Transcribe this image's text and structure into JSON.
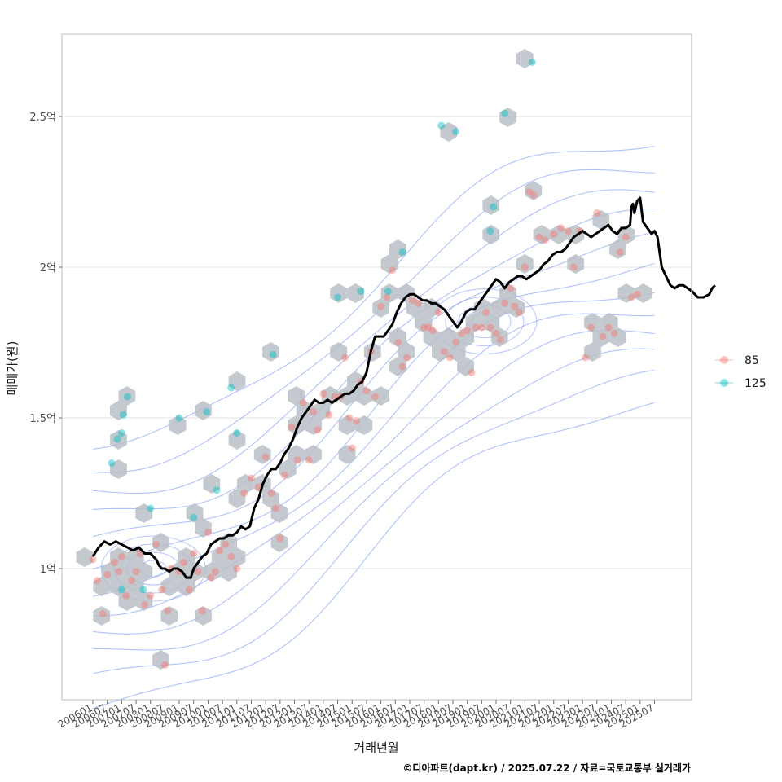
{
  "chart_data": {
    "type": "scatter",
    "xlabel": "거래년월",
    "ylabel": "매매가(원)",
    "caption": "©디아파트(dapt.kr) / 2025.07.22 / 자료=국토교통부 실거래가",
    "ylim": [
      0.6,
      2.78
    ],
    "y_ticks": [
      {
        "value": 1.0,
        "label": "1억"
      },
      {
        "value": 1.5,
        "label": "1.5억"
      },
      {
        "value": 2.0,
        "label": "2억"
      },
      {
        "value": 2.5,
        "label": "2.5억"
      }
    ],
    "x_ticks": [
      "200601",
      "200607",
      "200701",
      "200707",
      "200801",
      "200807",
      "200901",
      "200907",
      "201001",
      "201007",
      "201101",
      "201107",
      "201201",
      "201207",
      "201301",
      "201307",
      "201401",
      "201407",
      "201501",
      "201507",
      "201601",
      "201607",
      "201701",
      "201707",
      "201801",
      "201807",
      "201901",
      "201907",
      "202001",
      "202007",
      "202101",
      "202107",
      "202201",
      "202207",
      "202301",
      "202307",
      "202401",
      "202407",
      "202501",
      "202507"
    ],
    "grid": true,
    "legend_position": "right",
    "colors": {
      "85": "#f8766d",
      "125": "#00bfc4",
      "trend": "#000000",
      "density": "#6f8ff0",
      "hex": "#b9bfc7",
      "hex_light": "#c9d6e6"
    },
    "series": [
      {
        "name": "85",
        "color": "#f8766d",
        "points": [
          [
            0.0,
            1.03
          ],
          [
            0.3,
            0.96
          ],
          [
            0.7,
            0.85
          ],
          [
            1.0,
            0.98
          ],
          [
            1.5,
            1.02
          ],
          [
            1.8,
            0.99
          ],
          [
            2.0,
            1.04
          ],
          [
            2.3,
            0.91
          ],
          [
            2.7,
            0.96
          ],
          [
            3.0,
            0.99
          ],
          [
            3.3,
            1.05
          ],
          [
            3.6,
            0.88
          ],
          [
            4.0,
            0.91
          ],
          [
            4.4,
            1.08
          ],
          [
            4.8,
            0.93
          ],
          [
            5.2,
            0.86
          ],
          [
            5.4,
            1.0
          ],
          [
            5.0,
            0.68
          ],
          [
            6.0,
            0.99
          ],
          [
            6.3,
            1.02
          ],
          [
            6.7,
            0.93
          ],
          [
            7.0,
            1.05
          ],
          [
            7.3,
            0.99
          ],
          [
            7.6,
            0.86
          ],
          [
            8.0,
            1.12
          ],
          [
            8.2,
            0.97
          ],
          [
            8.5,
            0.99
          ],
          [
            8.8,
            1.06
          ],
          [
            9.2,
            1.08
          ],
          [
            9.6,
            1.04
          ],
          [
            10.0,
            1.0
          ],
          [
            10.5,
            1.25
          ],
          [
            11.0,
            1.3
          ],
          [
            11.5,
            1.27
          ],
          [
            12.0,
            1.37
          ],
          [
            12.4,
            1.25
          ],
          [
            12.7,
            1.2
          ],
          [
            13.0,
            1.1
          ],
          [
            13.3,
            1.31
          ],
          [
            13.8,
            1.47
          ],
          [
            14.2,
            1.36
          ],
          [
            14.6,
            1.55
          ],
          [
            15.0,
            1.36
          ],
          [
            15.3,
            1.52
          ],
          [
            15.6,
            1.46
          ],
          [
            16.0,
            1.58
          ],
          [
            16.4,
            1.51
          ],
          [
            16.8,
            1.57
          ],
          [
            17.2,
            1.57
          ],
          [
            17.5,
            1.7
          ],
          [
            17.8,
            1.5
          ],
          [
            18.0,
            1.4
          ],
          [
            18.3,
            1.49
          ],
          [
            18.6,
            1.62
          ],
          [
            19.0,
            1.59
          ],
          [
            19.3,
            1.72
          ],
          [
            19.6,
            1.57
          ],
          [
            20.0,
            1.87
          ],
          [
            20.4,
            1.9
          ],
          [
            20.8,
            1.99
          ],
          [
            21.2,
            1.75
          ],
          [
            21.5,
            1.67
          ],
          [
            21.8,
            1.7
          ],
          [
            22.2,
            1.89
          ],
          [
            22.6,
            1.88
          ],
          [
            23.0,
            1.8
          ],
          [
            23.3,
            1.8
          ],
          [
            23.6,
            1.79
          ],
          [
            24.0,
            1.85
          ],
          [
            24.4,
            1.72
          ],
          [
            24.8,
            1.7
          ],
          [
            25.2,
            1.75
          ],
          [
            25.6,
            1.78
          ],
          [
            26.0,
            1.79
          ],
          [
            26.3,
            1.65
          ],
          [
            26.6,
            1.8
          ],
          [
            27.0,
            1.8
          ],
          [
            27.3,
            1.85
          ],
          [
            27.6,
            1.8
          ],
          [
            28.0,
            1.78
          ],
          [
            28.3,
            1.76
          ],
          [
            28.6,
            1.88
          ],
          [
            29.0,
            1.93
          ],
          [
            29.3,
            1.87
          ],
          [
            29.6,
            1.85
          ],
          [
            30.0,
            2.0
          ],
          [
            30.3,
            2.25
          ],
          [
            30.6,
            2.24
          ],
          [
            31.0,
            2.1
          ],
          [
            31.4,
            2.09
          ],
          [
            32.0,
            2.11
          ],
          [
            32.5,
            2.13
          ],
          [
            33.0,
            2.12
          ],
          [
            33.4,
            2.0
          ],
          [
            33.8,
            2.12
          ],
          [
            34.2,
            1.7
          ],
          [
            34.6,
            1.8
          ],
          [
            35.0,
            2.18
          ],
          [
            35.4,
            1.77
          ],
          [
            35.8,
            1.8
          ],
          [
            36.2,
            1.78
          ],
          [
            36.6,
            2.05
          ],
          [
            37.0,
            2.1
          ],
          [
            37.4,
            1.9
          ],
          [
            37.8,
            1.91
          ]
        ]
      },
      {
        "name": "125",
        "color": "#00bfc4",
        "points": [
          [
            1.3,
            1.35
          ],
          [
            1.7,
            1.43
          ],
          [
            2.0,
            1.45
          ],
          [
            2.1,
            1.51
          ],
          [
            2.4,
            1.57
          ],
          [
            2.0,
            0.93
          ],
          [
            3.5,
            0.93
          ],
          [
            4.0,
            1.2
          ],
          [
            6.0,
            1.5
          ],
          [
            7.0,
            1.17
          ],
          [
            7.9,
            1.52
          ],
          [
            8.6,
            1.26
          ],
          [
            9.6,
            1.6
          ],
          [
            10.0,
            1.45
          ],
          [
            12.5,
            1.71
          ],
          [
            17.0,
            1.9
          ],
          [
            18.6,
            1.92
          ],
          [
            20.5,
            1.92
          ],
          [
            21.5,
            2.05
          ],
          [
            24.2,
            2.47
          ],
          [
            25.2,
            2.45
          ],
          [
            27.6,
            2.12
          ],
          [
            27.8,
            2.2
          ],
          [
            28.6,
            2.51
          ],
          [
            30.5,
            2.68
          ]
        ]
      }
    ],
    "trend": {
      "name": "median",
      "color": "#000000",
      "points": [
        [
          0,
          1.04
        ],
        [
          0.4,
          1.07
        ],
        [
          0.8,
          1.09
        ],
        [
          1.2,
          1.08
        ],
        [
          1.6,
          1.09
        ],
        [
          2.0,
          1.08
        ],
        [
          2.4,
          1.07
        ],
        [
          2.8,
          1.06
        ],
        [
          3.2,
          1.07
        ],
        [
          3.6,
          1.05
        ],
        [
          4.0,
          1.05
        ],
        [
          4.4,
          1.03
        ],
        [
          4.6,
          1.01
        ],
        [
          4.8,
          1.0
        ],
        [
          5.0,
          1.0
        ],
        [
          5.3,
          0.99
        ],
        [
          5.6,
          1.0
        ],
        [
          5.9,
          1.0
        ],
        [
          6.2,
          0.99
        ],
        [
          6.5,
          0.97
        ],
        [
          6.8,
          0.97
        ],
        [
          7.0,
          1.0
        ],
        [
          7.3,
          1.02
        ],
        [
          7.6,
          1.04
        ],
        [
          7.9,
          1.05
        ],
        [
          8.2,
          1.08
        ],
        [
          8.5,
          1.09
        ],
        [
          8.8,
          1.1
        ],
        [
          9.1,
          1.1
        ],
        [
          9.4,
          1.11
        ],
        [
          9.7,
          1.11
        ],
        [
          10.0,
          1.12
        ],
        [
          10.3,
          1.14
        ],
        [
          10.6,
          1.13
        ],
        [
          10.9,
          1.14
        ],
        [
          11.2,
          1.2
        ],
        [
          11.5,
          1.23
        ],
        [
          11.8,
          1.28
        ],
        [
          12.1,
          1.31
        ],
        [
          12.4,
          1.33
        ],
        [
          12.7,
          1.33
        ],
        [
          13.0,
          1.35
        ],
        [
          13.3,
          1.38
        ],
        [
          13.6,
          1.4
        ],
        [
          13.9,
          1.43
        ],
        [
          14.2,
          1.47
        ],
        [
          14.5,
          1.5
        ],
        [
          14.8,
          1.52
        ],
        [
          15.1,
          1.54
        ],
        [
          15.4,
          1.56
        ],
        [
          15.7,
          1.55
        ],
        [
          16.0,
          1.55
        ],
        [
          16.3,
          1.56
        ],
        [
          16.6,
          1.55
        ],
        [
          16.9,
          1.56
        ],
        [
          17.2,
          1.57
        ],
        [
          17.5,
          1.58
        ],
        [
          17.8,
          1.58
        ],
        [
          18.1,
          1.59
        ],
        [
          18.4,
          1.61
        ],
        [
          18.7,
          1.62
        ],
        [
          19.0,
          1.65
        ],
        [
          19.3,
          1.72
        ],
        [
          19.6,
          1.77
        ],
        [
          19.9,
          1.77
        ],
        [
          20.2,
          1.77
        ],
        [
          20.5,
          1.79
        ],
        [
          20.8,
          1.81
        ],
        [
          21.1,
          1.85
        ],
        [
          21.4,
          1.88
        ],
        [
          21.7,
          1.9
        ],
        [
          22.0,
          1.91
        ],
        [
          22.3,
          1.91
        ],
        [
          22.6,
          1.9
        ],
        [
          22.9,
          1.89
        ],
        [
          23.2,
          1.89
        ],
        [
          23.5,
          1.88
        ],
        [
          23.8,
          1.88
        ],
        [
          24.1,
          1.87
        ],
        [
          24.4,
          1.86
        ],
        [
          24.7,
          1.84
        ],
        [
          25.0,
          1.82
        ],
        [
          25.3,
          1.8
        ],
        [
          25.6,
          1.82
        ],
        [
          25.9,
          1.85
        ],
        [
          26.2,
          1.86
        ],
        [
          26.5,
          1.86
        ],
        [
          26.8,
          1.88
        ],
        [
          27.1,
          1.9
        ],
        [
          27.4,
          1.92
        ],
        [
          27.7,
          1.94
        ],
        [
          28.0,
          1.96
        ],
        [
          28.3,
          1.95
        ],
        [
          28.6,
          1.93
        ],
        [
          28.9,
          1.95
        ],
        [
          29.2,
          1.96
        ],
        [
          29.5,
          1.97
        ],
        [
          29.8,
          1.97
        ],
        [
          30.1,
          1.96
        ],
        [
          30.4,
          1.97
        ],
        [
          30.7,
          1.98
        ],
        [
          31.0,
          1.99
        ],
        [
          31.3,
          2.01
        ],
        [
          31.6,
          2.02
        ],
        [
          31.9,
          2.04
        ],
        [
          32.2,
          2.05
        ],
        [
          32.5,
          2.05
        ],
        [
          32.8,
          2.06
        ],
        [
          33.1,
          2.08
        ],
        [
          33.4,
          2.1
        ],
        [
          33.7,
          2.11
        ],
        [
          34.0,
          2.12
        ],
        [
          34.3,
          2.11
        ],
        [
          34.6,
          2.1
        ],
        [
          34.9,
          2.11
        ],
        [
          35.2,
          2.12
        ],
        [
          35.5,
          2.13
        ],
        [
          35.8,
          2.14
        ],
        [
          36.1,
          2.12
        ],
        [
          36.4,
          2.11
        ],
        [
          36.7,
          2.13
        ],
        [
          37.0,
          2.13
        ],
        [
          37.3,
          2.14
        ],
        [
          37.4,
          2.2
        ],
        [
          37.5,
          2.21
        ],
        [
          37.6,
          2.18
        ],
        [
          37.8,
          2.22
        ],
        [
          38.0,
          2.23
        ],
        [
          38.2,
          2.15
        ],
        [
          38.5,
          2.13
        ],
        [
          38.8,
          2.11
        ],
        [
          39.0,
          2.12
        ],
        [
          39.2,
          2.1
        ],
        [
          39.5,
          2.0
        ],
        [
          39.7,
          1.98
        ],
        [
          39.9,
          1.96
        ],
        [
          40.1,
          1.94
        ],
        [
          40.4,
          1.93
        ],
        [
          40.7,
          1.94
        ],
        [
          41.0,
          1.94
        ],
        [
          41.3,
          1.93
        ],
        [
          41.6,
          1.92
        ],
        [
          42.0,
          1.9
        ],
        [
          42.4,
          1.9
        ],
        [
          42.8,
          1.91
        ],
        [
          43.0,
          1.93
        ],
        [
          43.2,
          1.94
        ]
      ]
    }
  },
  "legend": {
    "items": [
      {
        "label": "85",
        "color": "#f8766d"
      },
      {
        "label": "125",
        "color": "#00bfc4"
      }
    ]
  }
}
